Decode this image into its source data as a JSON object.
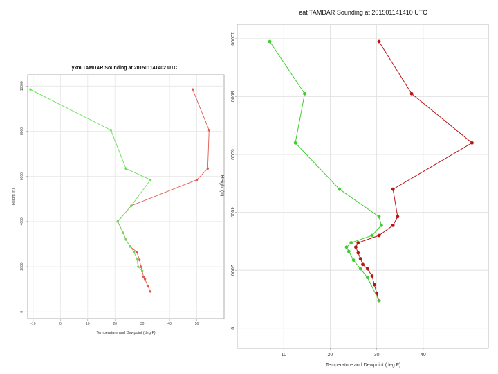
{
  "chart_data": [
    {
      "type": "line",
      "title": "ykm TAMDAR Sounding at 201501141402 UTC",
      "xlabel": "Temperature and Dewpoint (deg F)",
      "ylabel": "Height (ft)",
      "xlim": [
        -12,
        60
      ],
      "ylim": [
        -300,
        10500
      ],
      "xticks": [
        "-10",
        "0",
        "10",
        "20",
        "30",
        "40",
        "50"
      ],
      "xtick_values": [
        -10,
        0,
        10,
        20,
        30,
        40,
        50
      ],
      "yticks": [
        "0",
        "2000",
        "4000",
        "6000",
        "8000",
        "10000"
      ],
      "ytick_values": [
        0,
        2000,
        4000,
        6000,
        8000,
        10000
      ],
      "grid": true,
      "series": [
        {
          "color": "#e05a4c",
          "points": [
            [
              48.5,
              9850
            ],
            [
              54.5,
              8050
            ],
            [
              54,
              6350
            ],
            [
              50,
              5850
            ],
            [
              26,
              4700
            ],
            [
              21,
              4000
            ],
            [
              23,
              3500
            ],
            [
              24,
              3200
            ],
            [
              25.5,
              2900
            ],
            [
              28,
              2650
            ],
            [
              29,
              2300
            ],
            [
              29.5,
              2000
            ],
            [
              30,
              1800
            ],
            [
              30.5,
              1550
            ],
            [
              31,
              1450
            ],
            [
              32,
              1150
            ],
            [
              33,
              900
            ]
          ]
        },
        {
          "color": "#66dd55",
          "points": [
            [
              -11,
              9850
            ],
            [
              18.5,
              8050
            ],
            [
              24,
              6350
            ],
            [
              33,
              5850
            ],
            [
              26,
              4700
            ],
            [
              21,
              4000
            ],
            [
              23,
              3500
            ],
            [
              24,
              3200
            ],
            [
              25.5,
              2900
            ],
            [
              27,
              2650
            ],
            [
              28,
              2350
            ],
            [
              28.5,
              2000
            ],
            [
              30,
              1800
            ]
          ]
        }
      ]
    },
    {
      "type": "line",
      "title": "eat TAMDAR Sounding at 201501141410 UTC",
      "xlabel": "Temperature and Dewpoint (deg F)",
      "ylabel": "Height (ft)",
      "xlim": [
        0,
        54
      ],
      "ylim": [
        -700,
        10500
      ],
      "xticks": [
        "10",
        "20",
        "30",
        "40"
      ],
      "xtick_values": [
        10,
        20,
        30,
        40
      ],
      "yticks": [
        "0",
        "2000",
        "4000",
        "6000",
        "8000",
        "10000"
      ],
      "ytick_values": [
        0,
        2000,
        4000,
        6000,
        8000,
        10000
      ],
      "grid": true,
      "series": [
        {
          "color": "#b81414",
          "points": [
            [
              30.5,
              9900
            ],
            [
              37.5,
              8100
            ],
            [
              50.5,
              6400
            ],
            [
              33.5,
              4800
            ],
            [
              34.5,
              3850
            ],
            [
              33.5,
              3550
            ],
            [
              30.5,
              3200
            ],
            [
              26,
              2950
            ],
            [
              25.5,
              2800
            ],
            [
              26,
              2600
            ],
            [
              26.5,
              2400
            ],
            [
              27,
              2200
            ],
            [
              28,
              2050
            ],
            [
              29,
              1800
            ],
            [
              29.5,
              1500
            ],
            [
              30,
              1200
            ],
            [
              30.5,
              950
            ]
          ]
        },
        {
          "color": "#3ccf2c",
          "points": [
            [
              7,
              9900
            ],
            [
              14.5,
              8100
            ],
            [
              12.5,
              6400
            ],
            [
              22,
              4800
            ],
            [
              30.5,
              3850
            ],
            [
              31,
              3550
            ],
            [
              29,
              3200
            ],
            [
              24.5,
              2950
            ],
            [
              23.5,
              2800
            ],
            [
              24,
              2650
            ],
            [
              25,
              2350
            ],
            [
              26.5,
              2050
            ],
            [
              28,
              1750
            ],
            [
              30.5,
              950
            ]
          ]
        }
      ]
    }
  ]
}
